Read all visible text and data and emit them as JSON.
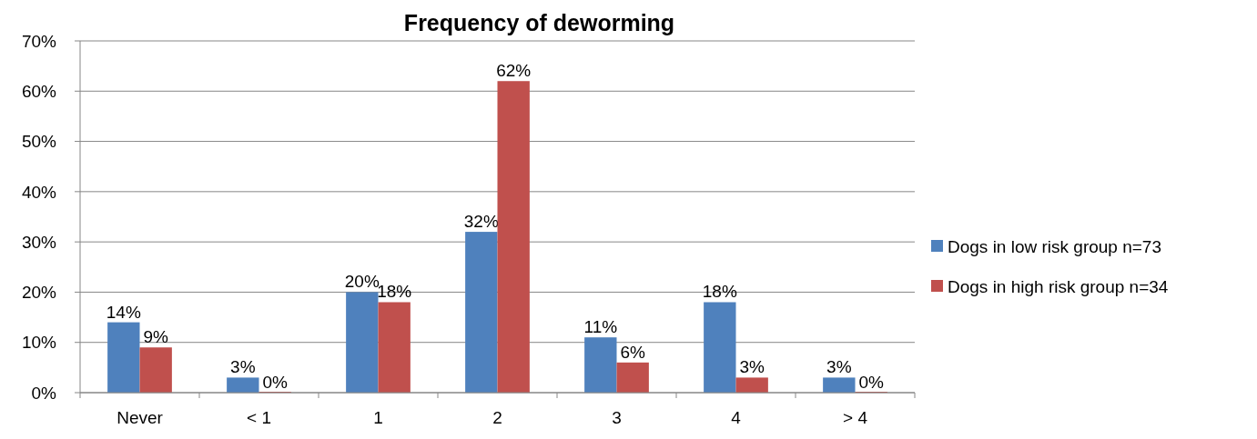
{
  "chart_data": {
    "type": "bar",
    "title": "Frequency of deworming",
    "categories": [
      "Never",
      "< 1",
      "1",
      "2",
      "3",
      "4",
      "> 4"
    ],
    "series": [
      {
        "name": "Dogs in low risk group n=73",
        "color": "#4f81bd",
        "values": [
          14,
          3,
          20,
          32,
          11,
          18,
          3
        ],
        "value_labels": [
          "14%",
          "3%",
          "20%",
          "32%",
          "11%",
          "18%",
          "3%"
        ]
      },
      {
        "name": "Dogs in high risk group n=34",
        "color": "#c0504d",
        "values": [
          9,
          0,
          18,
          62,
          6,
          3,
          0
        ],
        "value_labels": [
          "9%",
          "0%",
          "18%",
          "62%",
          "6%",
          "3%",
          "0%"
        ]
      }
    ],
    "ylim": [
      0,
      70
    ],
    "yticks": [
      {
        "value": 0,
        "label": "0%"
      },
      {
        "value": 10,
        "label": "10%"
      },
      {
        "value": 20,
        "label": "20%"
      },
      {
        "value": 30,
        "label": "30%"
      },
      {
        "value": 40,
        "label": "40%"
      },
      {
        "value": 50,
        "label": "50%"
      },
      {
        "value": 60,
        "label": "60%"
      },
      {
        "value": 70,
        "label": "70%"
      }
    ],
    "grid": "y",
    "legend": "right"
  }
}
